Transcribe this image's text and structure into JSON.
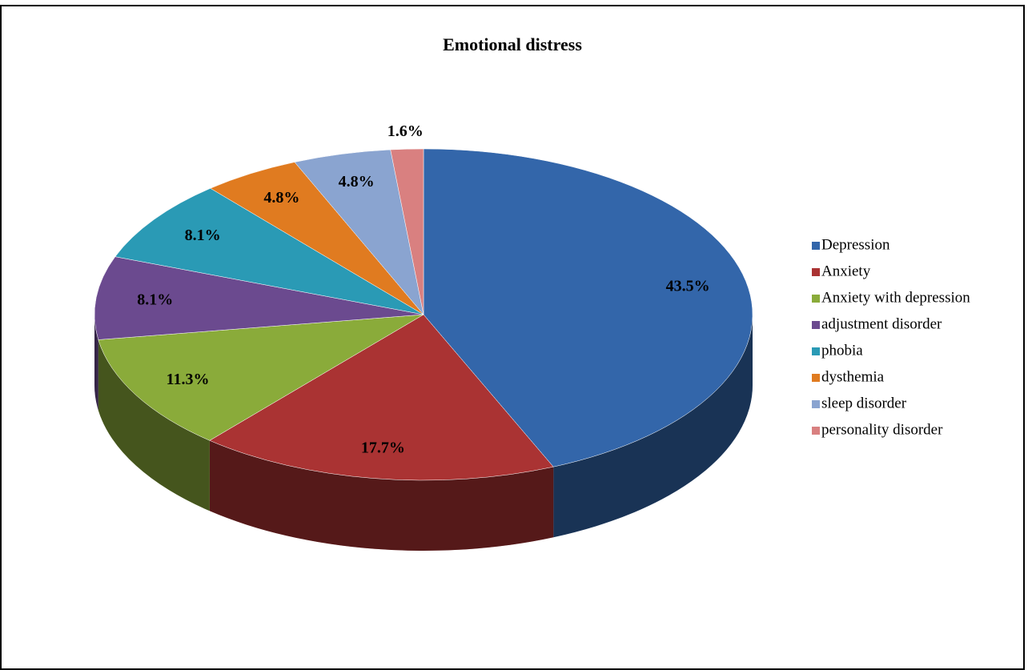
{
  "chart_data": {
    "type": "pie",
    "title": "Emotional distress",
    "categories": [
      "Depression",
      "Anxiety",
      "Anxiety with depression",
      "adjustment disorder",
      "phobia",
      "dysthemia",
      "sleep disorder",
      "personality disorder"
    ],
    "values": [
      43.5,
      17.7,
      11.3,
      8.1,
      8.1,
      4.8,
      4.8,
      1.6
    ],
    "value_labels": [
      "43.5%",
      "17.7%",
      "11.3%",
      "8.1%",
      "8.1%",
      "4.8%",
      "4.8%",
      "1.6%"
    ],
    "colors": [
      "#3366aa",
      "#aa3333",
      "#8aab3a",
      "#6b4a8f",
      "#2a9ab5",
      "#e07b20",
      "#8aa4d0",
      "#d98080"
    ],
    "legend": "right"
  }
}
